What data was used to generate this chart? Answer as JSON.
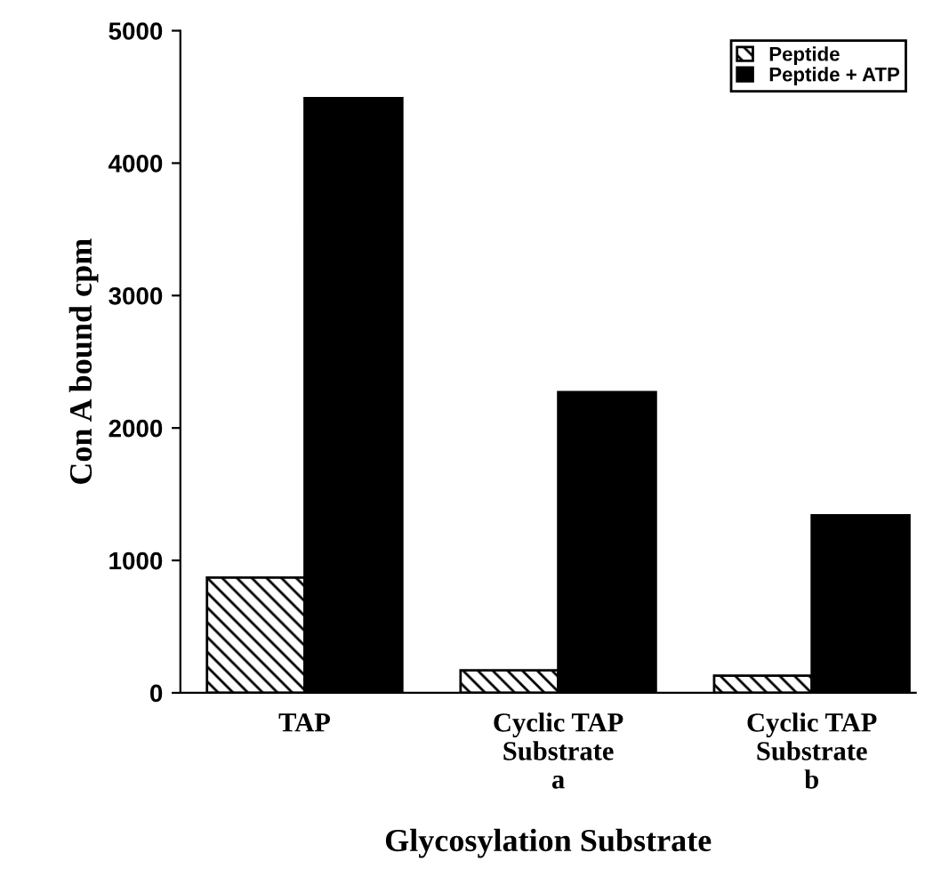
{
  "chart_data": {
    "type": "bar",
    "xlabel": "Glycosylation Substrate",
    "ylabel": "Con A bound cpm",
    "categories": [
      "TAP",
      "Cyclic TAP\nSubstrate\na",
      "Cyclic TAP\nSubstrate\nb"
    ],
    "series": [
      {
        "name": "Peptide",
        "color": "#000000",
        "values": [
          870,
          170,
          130
        ]
      },
      {
        "name": "Peptide + ATP",
        "color": "#000000",
        "values": [
          4490,
          2270,
          1340
        ]
      }
    ],
    "ylim": [
      0,
      5000
    ],
    "yticks": [
      0,
      1000,
      2000,
      3000,
      4000,
      5000
    ],
    "grid": false,
    "legend": "top right"
  }
}
